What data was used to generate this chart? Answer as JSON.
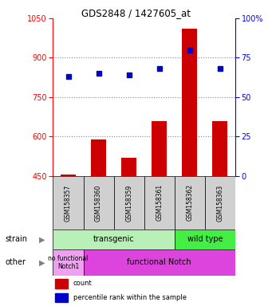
{
  "title": "GDS2848 / 1427605_at",
  "samples": [
    "GSM158357",
    "GSM158360",
    "GSM158359",
    "GSM158361",
    "GSM158362",
    "GSM158363"
  ],
  "counts": [
    455,
    590,
    520,
    660,
    1010,
    660
  ],
  "percentiles": [
    63,
    65,
    64,
    68,
    80,
    68
  ],
  "ylim_left": [
    450,
    1050
  ],
  "ylim_right": [
    0,
    100
  ],
  "yticks_left": [
    450,
    600,
    750,
    900,
    1050
  ],
  "yticks_right": [
    0,
    25,
    50,
    75,
    100
  ],
  "bar_color": "#cc0000",
  "dot_color": "#0000cc",
  "color_light_green": "#b8f0b8",
  "color_green": "#44ee44",
  "color_light_pink": "#f0a0f0",
  "color_pink": "#dd44dd",
  "color_gray_box": "#d0d0d0",
  "grid_color": "#888888",
  "bar_bottom": 450,
  "bar_width": 0.5,
  "grid_yticks": [
    600,
    750,
    900
  ],
  "ytick_right_labels": [
    "0",
    "25",
    "50",
    "75",
    "100%"
  ]
}
